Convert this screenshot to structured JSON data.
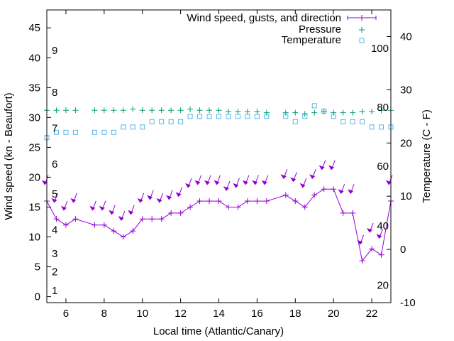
{
  "chart_data": {
    "type": "line",
    "title": "",
    "xlabel": "Local time (Atlantic/Canary)",
    "ylabel": "Wind speed (kn - Beaufort)",
    "y2label": "Temperature (C - F)",
    "xlim": [
      5,
      23
    ],
    "ylim": [
      -1,
      48
    ],
    "y2lim": [
      -10,
      45
    ],
    "xticks": [
      6,
      8,
      10,
      12,
      14,
      16,
      18,
      20,
      22
    ],
    "yticks": [
      0,
      5,
      10,
      15,
      20,
      25,
      30,
      35,
      40,
      45
    ],
    "y2ticks": [
      -10,
      0,
      10,
      20,
      30,
      40
    ],
    "beaufort_labels": [
      {
        "label": "1",
        "y": 1
      },
      {
        "label": "2",
        "y": 4.2
      },
      {
        "label": "3",
        "y": 7.2
      },
      {
        "label": "4",
        "y": 11.2
      },
      {
        "label": "5",
        "y": 17.2
      },
      {
        "label": "6",
        "y": 22.2
      },
      {
        "label": "7",
        "y": 28.2
      },
      {
        "label": "8",
        "y": 34.2
      },
      {
        "label": "9",
        "y": 41.2
      }
    ],
    "fahrenheit_labels": [
      {
        "label": "20",
        "temp": -6.7
      },
      {
        "label": "40",
        "temp": 4.4
      },
      {
        "label": "60",
        "temp": 15.6
      },
      {
        "label": "80",
        "temp": 26.7
      },
      {
        "label": "100",
        "temp": 37.8
      }
    ],
    "legend": {
      "position": "top-right",
      "entries": [
        "Wind speed, gusts, and direction",
        "Pressure",
        "Temperature"
      ]
    },
    "series": [
      {
        "name": "Wind speed, gusts, and direction",
        "color": "#9400d3",
        "x": [
          5,
          5.5,
          6,
          6.5,
          7.5,
          8,
          8.5,
          9,
          9.5,
          10,
          10.5,
          11,
          11.5,
          12,
          12.5,
          13,
          13.5,
          14,
          14.5,
          15,
          15.5,
          16,
          16.5,
          17.5,
          18,
          18.5,
          19,
          19.5,
          20,
          20.5,
          21,
          21.5,
          22,
          22.5,
          23
        ],
        "y": [
          16,
          13,
          12,
          13,
          12,
          12,
          11,
          10,
          11,
          13,
          13,
          13,
          14,
          14,
          15,
          16,
          16,
          16,
          15,
          15,
          16,
          16,
          16,
          17,
          16,
          15,
          17,
          18,
          18,
          14,
          14,
          6,
          8,
          7,
          16
        ],
        "direction_x": [
          5,
          5.5,
          6,
          6.5,
          7.5,
          8,
          8.5,
          9,
          9.5,
          10,
          10.5,
          11,
          11.5,
          12,
          12.5,
          13,
          13.5,
          14,
          14.5,
          15,
          15.5,
          16,
          16.5,
          17.5,
          18,
          18.5,
          19,
          19.5,
          20,
          20.5,
          21,
          21.5,
          22,
          22.5,
          23
        ],
        "direction_y": [
          19.5,
          16.5,
          15.2,
          16.5,
          15.2,
          15.2,
          14.5,
          13.5,
          14.5,
          16.5,
          17,
          16.5,
          17,
          17.5,
          19,
          19.5,
          19.5,
          19.5,
          18.5,
          19,
          19.5,
          19.5,
          19.5,
          20.5,
          20,
          19,
          20.5,
          22,
          22,
          18,
          18,
          9.5,
          11.5,
          10.5,
          19.5
        ]
      },
      {
        "name": "Pressure",
        "color": "#009e73",
        "x": [
          5,
          5.5,
          6,
          6.5,
          7.5,
          8,
          8.5,
          9,
          9.5,
          10,
          10.5,
          11,
          11.5,
          12,
          12.5,
          13,
          13.5,
          14,
          14.5,
          15,
          15.5,
          16,
          16.5,
          17.5,
          18,
          18.5,
          19,
          19.5,
          20,
          20.5,
          21,
          21.5,
          22,
          22.5,
          23
        ],
        "y": [
          31.2,
          31.2,
          31.2,
          31.2,
          31.2,
          31.2,
          31.2,
          31.2,
          31.4,
          31.2,
          31.2,
          31.2,
          31.2,
          31.2,
          31.4,
          31.2,
          31.2,
          31.2,
          31.0,
          31.0,
          31.0,
          31.0,
          30.8,
          30.8,
          30.8,
          30.6,
          30.8,
          31.0,
          30.8,
          30.8,
          30.8,
          31.0,
          31.0,
          31.2,
          31.2
        ]
      },
      {
        "name": "Temperature",
        "color": "#56b4e9",
        "x": [
          5,
          5.5,
          6,
          6.5,
          7.5,
          8,
          8.5,
          9,
          9.5,
          10,
          10.5,
          11,
          11.5,
          12,
          12.5,
          13,
          13.5,
          14,
          14.5,
          15,
          15.5,
          16,
          16.5,
          17.5,
          18,
          18.5,
          19,
          19.5,
          20,
          20.5,
          21,
          21.5,
          22,
          22.5,
          23
        ],
        "y": [
          21,
          22,
          22,
          22,
          22,
          22,
          22,
          23,
          23,
          23,
          24,
          24,
          24,
          24,
          25,
          25,
          25,
          25,
          25,
          25,
          25,
          25,
          25,
          25,
          24,
          25,
          27,
          26,
          25,
          24,
          24,
          24,
          23,
          23,
          23
        ]
      }
    ]
  }
}
